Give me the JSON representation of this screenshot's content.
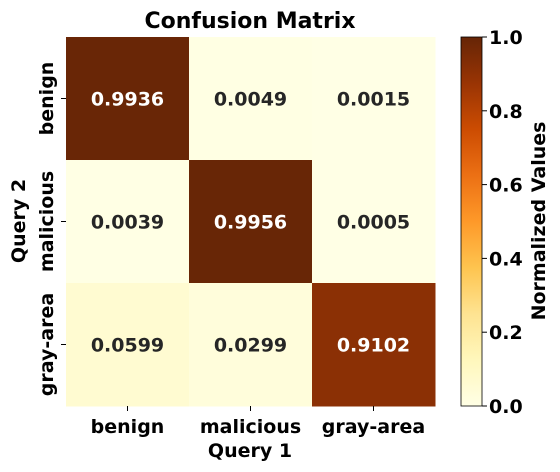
{
  "chart_data": {
    "type": "heatmap",
    "title": "Confusion Matrix",
    "xlabel": "Query 1",
    "ylabel": "Query 2",
    "x_categories": [
      "benign",
      "malicious",
      "gray-area"
    ],
    "y_categories": [
      "benign",
      "malicious",
      "gray-area"
    ],
    "values": [
      [
        0.9936,
        0.0049,
        0.0015
      ],
      [
        0.0039,
        0.9956,
        0.0005
      ],
      [
        0.0599,
        0.0299,
        0.9102
      ]
    ],
    "value_labels": [
      [
        "0.9936",
        "0.0049",
        "0.0015"
      ],
      [
        "0.0039",
        "0.9956",
        "0.0005"
      ],
      [
        "0.0599",
        "0.0299",
        "0.9102"
      ]
    ],
    "colorbar": {
      "label": "Normalized Values",
      "range": [
        0.0,
        1.0
      ],
      "ticks": [
        0.0,
        0.2,
        0.4,
        0.6,
        0.8,
        1.0
      ],
      "tick_labels": [
        "0.0",
        "0.2",
        "0.4",
        "0.6",
        "0.8",
        "1.0"
      ]
    },
    "colormap": [
      "#ffffe5",
      "#fff7bc",
      "#fee391",
      "#fec44f",
      "#fe9929",
      "#ec7014",
      "#cc4c02",
      "#993404",
      "#662506"
    ]
  }
}
